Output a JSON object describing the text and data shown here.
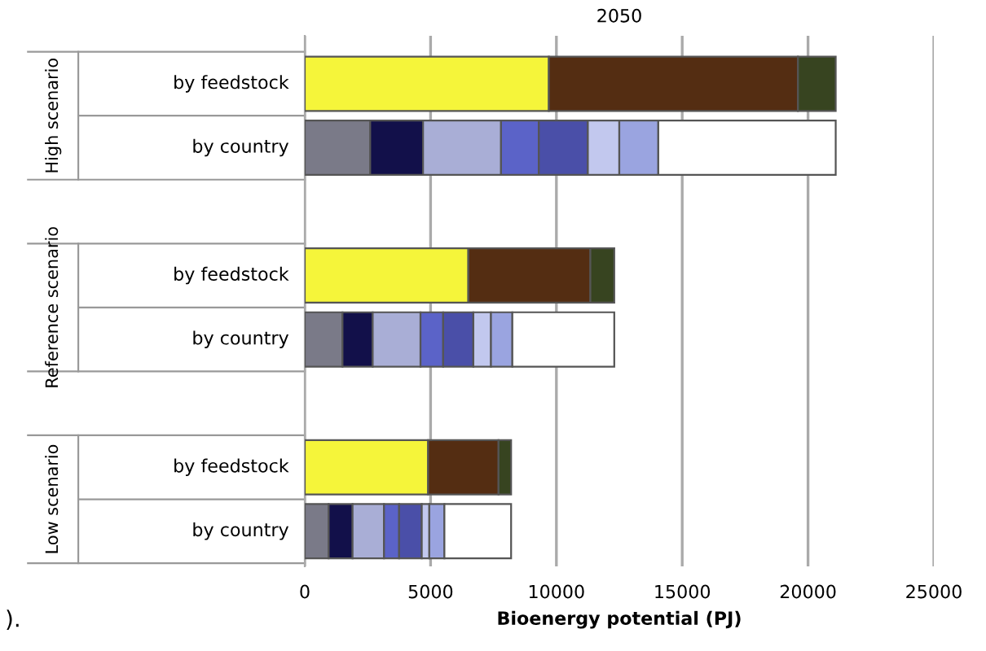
{
  "chart_data": {
    "type": "bar",
    "orientation": "horizontal",
    "stacked": true,
    "title": "2050",
    "xlabel": "Bioenergy potential (PJ)",
    "categories": [
      "by feedstock",
      "by country",
      null,
      "by feedstock",
      "by country",
      null,
      "by feedstock",
      "by country"
    ],
    "series": [
      {
        "color": "#f5f53a",
        "values": [
          9700,
          null,
          null,
          6500,
          null,
          null,
          4900,
          null
        ]
      },
      {
        "color": "#542d12",
        "values": [
          9900,
          null,
          null,
          4850,
          null,
          null,
          2800,
          null
        ]
      },
      {
        "color": "#374420",
        "values": [
          1500,
          null,
          null,
          950,
          null,
          null,
          500,
          null
        ]
      },
      {
        "color": "#7a7a88",
        "values": [
          null,
          2600,
          null,
          null,
          1500,
          null,
          null,
          950
        ]
      },
      {
        "color": "#12104a",
        "values": [
          null,
          2100,
          null,
          null,
          1200,
          null,
          null,
          950
        ]
      },
      {
        "color": "#a9aed6",
        "values": [
          null,
          3100,
          null,
          null,
          1900,
          null,
          null,
          1250
        ]
      },
      {
        "color": "#5b63c8",
        "values": [
          null,
          1500,
          null,
          null,
          900,
          null,
          null,
          600
        ]
      },
      {
        "color": "#4a4fa8",
        "values": [
          null,
          1950,
          null,
          null,
          1200,
          null,
          null,
          900
        ]
      },
      {
        "color": "#c2c8ee",
        "values": [
          null,
          1250,
          null,
          null,
          700,
          null,
          null,
          300
        ]
      },
      {
        "color": "#9aa4e0",
        "values": [
          null,
          1550,
          null,
          null,
          850,
          null,
          null,
          600
        ]
      },
      {
        "color": "#ffffff",
        "values": [
          null,
          7050,
          null,
          null,
          4050,
          null,
          null,
          2650
        ]
      }
    ],
    "xlim": [
      0,
      25000
    ],
    "xticks": [
      0,
      5000,
      10000,
      15000,
      20000,
      25000
    ],
    "grid": "x",
    "legend": false,
    "annotations": [
      "High scenario",
      "Reference scenario",
      "Low scenario",
      ")."
    ]
  }
}
